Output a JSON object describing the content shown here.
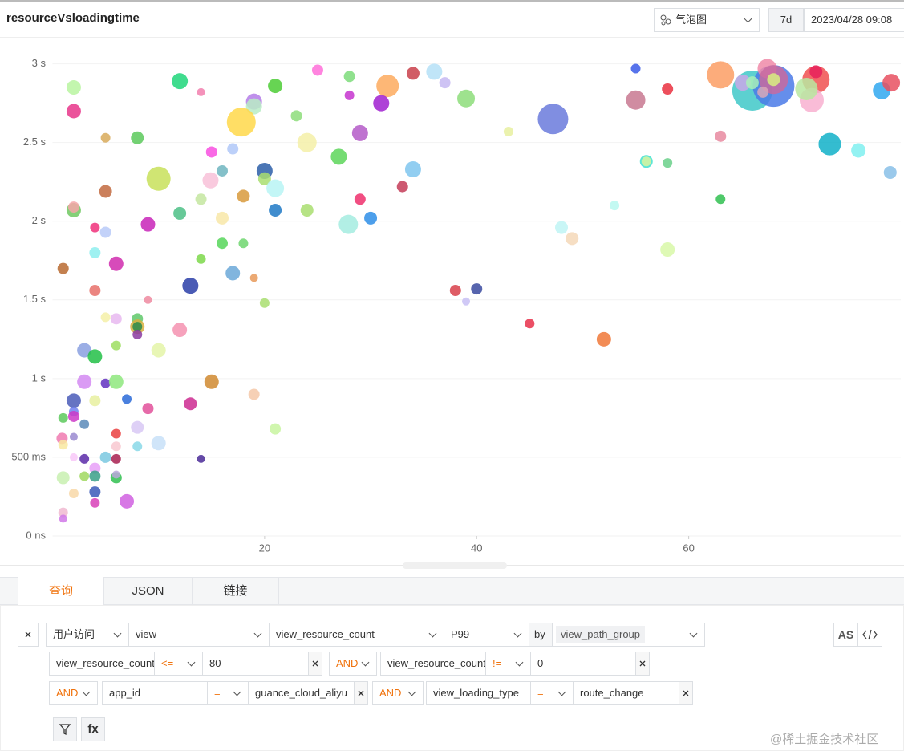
{
  "header": {
    "title": "resourceVsloadingtime",
    "chart_type": "气泡图",
    "range": "7d",
    "time": "2023/04/28 09:08"
  },
  "chart_data": {
    "type": "bubble",
    "x": [
      2.0,
      2.0,
      12.0,
      14.0,
      25.0,
      28.0,
      31.6,
      34.0,
      36.0,
      37.0,
      39.0,
      28.0,
      31.0,
      21.0,
      19.0,
      19.0,
      17.8,
      23.0,
      29.0,
      24.0,
      27.0,
      20.0,
      20.0,
      21.0,
      34.0,
      33.0,
      29.0,
      30.0,
      27.9,
      24.0,
      21.0,
      18.0,
      16.0,
      14.9,
      15.0,
      17.0,
      10.0,
      8.0,
      5.0,
      5.0,
      2.0,
      2.0,
      4.0,
      5.0,
      9.0,
      12.0,
      14.0,
      16.0,
      16.0,
      18.0,
      14.0,
      4.0,
      1.0,
      6.0,
      17.0,
      19.0,
      13.0,
      4.0,
      9.0,
      20.0,
      5.0,
      6.0,
      8.0,
      8.0,
      8.0,
      8.0,
      12.0,
      3.0,
      6.0,
      10.0,
      4.0,
      3.0,
      5.0,
      6.0,
      15.0,
      2.0,
      4.0,
      7.0,
      19.0,
      13.0,
      9.0,
      1.0,
      2.0,
      2.0,
      3.0,
      8.0,
      21.0,
      6.0,
      0.9,
      2.0,
      1.0,
      6.0,
      8.0,
      10.0,
      2.0,
      3.0,
      5.0,
      6.0,
      14.0,
      4.0,
      1.0,
      3.0,
      4.0,
      6.0,
      6.0,
      4.0,
      2.0,
      7.0,
      4.0,
      1.0,
      1.0,
      38.0,
      40.0,
      39.0,
      45.0,
      52.0,
      43.0,
      47.2,
      48.0,
      49.0,
      53.0,
      55.0,
      55.0,
      58.0,
      56.0,
      56.0,
      58.0,
      58.0,
      63.0,
      63.0,
      63.0,
      66.0,
      68.0,
      67.4,
      68.0,
      65.1,
      66.0,
      68.0,
      67.0,
      72.0,
      71.6,
      71.1,
      72.0,
      73.3,
      76.0,
      78.2,
      79.1,
      79.0
    ],
    "values": [
      2850,
      2700,
      2890,
      2820,
      2960,
      2920,
      2860,
      2940,
      2950,
      2880,
      2780,
      2800,
      2750,
      2860,
      2760,
      2730,
      2630,
      2670,
      2560,
      2500,
      2410,
      2320,
      2270,
      2210,
      2330,
      2220,
      2140,
      2020,
      1980,
      2070,
      2070,
      2160,
      2320,
      2260,
      2440,
      2460,
      2270,
      2530,
      2530,
      2190,
      2070,
      2090,
      1960,
      1930,
      1980,
      2050,
      2140,
      2020,
      1860,
      1860,
      1760,
      1800,
      1700,
      1730,
      1670,
      1640,
      1590,
      1560,
      1500,
      1480,
      1390,
      1380,
      1380,
      1330,
      1330,
      1280,
      1310,
      1180,
      1210,
      1180,
      1140,
      980,
      970,
      980,
      980,
      860,
      860,
      870,
      900,
      840,
      810,
      750,
      790,
      760,
      710,
      690,
      680,
      650,
      620,
      630,
      580,
      570,
      570,
      590,
      500,
      490,
      500,
      490,
      490,
      430,
      370,
      380,
      380,
      370,
      390,
      280,
      270,
      220,
      210,
      150,
      110,
      1560,
      1570,
      1490,
      1350,
      1250,
      2570,
      2650,
      1960,
      1890,
      2100,
      2970,
      2770,
      2840,
      2380,
      2380,
      2370,
      1820,
      2540,
      2140,
      2930,
      2830,
      2860,
      2970,
      2900,
      2880,
      2880,
      2900,
      2820,
      2900,
      2770,
      2840,
      2950,
      2490,
      2450,
      2830,
      2880,
      2310
    ],
    "sizes": [
      9,
      9,
      10,
      5,
      7,
      7,
      14,
      8,
      10,
      7,
      11,
      6,
      10,
      9,
      10,
      10,
      18,
      7,
      10,
      12,
      10,
      10,
      8,
      11,
      10,
      7,
      7,
      8,
      12,
      8,
      8,
      8,
      7,
      10,
      7,
      7,
      15,
      8,
      6,
      8,
      9,
      7,
      6,
      7,
      9,
      8,
      7,
      8,
      7,
      6,
      6,
      7,
      7,
      9,
      9,
      5,
      10,
      7,
      5,
      6,
      6,
      7,
      7,
      9,
      6,
      6,
      9,
      9,
      6,
      9,
      9,
      9,
      6,
      9,
      9,
      9,
      7,
      6,
      7,
      8,
      7,
      6,
      6,
      7,
      6,
      8,
      7,
      6,
      7,
      5,
      6,
      6,
      6,
      9,
      5,
      6,
      7,
      6,
      5,
      7,
      8,
      6,
      7,
      7,
      5,
      7,
      6,
      9,
      6,
      6,
      5,
      7,
      7,
      5,
      6,
      9,
      6,
      19,
      8,
      8,
      6,
      6,
      12,
      7,
      8,
      6,
      6,
      9,
      7,
      6,
      17,
      25,
      26,
      12,
      18,
      10,
      8,
      8,
      7,
      17,
      15,
      14,
      8,
      14,
      9,
      11,
      11,
      8
    ],
    "colors": [
      "#b9f5a0",
      "#e8358a",
      "#1fd67a",
      "#f27fae",
      "#ff6fd9",
      "#7ddc7a",
      "#fdaa5e",
      "#c9404a",
      "#b5e1f7",
      "#c5b8f2",
      "#8ddd7a",
      "#c634cf",
      "#a020d0",
      "#4ccd35",
      "#b47ce8",
      "#b8ecc6",
      "#ffd84a",
      "#8ddd7a",
      "#b45ac8",
      "#f5f0a8",
      "#5dd65a",
      "#2b5ea8",
      "#a9de70",
      "#b8f5f5",
      "#7fc6ee",
      "#c43c58",
      "#ef2f6c",
      "#2e8ee8",
      "#a4ece0",
      "#a9de70",
      "#1f79c5",
      "#d89a3c",
      "#6fb5c0",
      "#f8c1d8",
      "#f84fe0",
      "#b0c8f8",
      "#c8e05a",
      "#5cc95c",
      "#d8aa5a",
      "#c26a40",
      "#6ec860",
      "#f4a6a8",
      "#f0307a",
      "#b8caf8",
      "#c825b8",
      "#4cbf86",
      "#c4e6a0",
      "#f8e8a8",
      "#57d65a",
      "#6ed66e",
      "#7cd84a",
      "#8eeeee",
      "#b86a30",
      "#d02cae",
      "#6ba8d8",
      "#e89a5a",
      "#2a3ea8",
      "#e8706a",
      "#ee8aa0",
      "#a9de70",
      "#f4f0a8",
      "#e8b8f0",
      "#5fc86a",
      "#d8b040",
      "#2a8a4a",
      "#8a3aa0",
      "#f492b0",
      "#8aa0e0",
      "#9ede60",
      "#e4f4a8",
      "#22c046",
      "#d48af2",
      "#6030c0",
      "#8ee87e",
      "#d08a30",
      "#4a5cb8",
      "#e8f0a0",
      "#2a6ad8",
      "#f4c8a8",
      "#cc2a90",
      "#e2509a",
      "#5cc95c",
      "#7080f0",
      "#cc3ac8",
      "#5a8ab8",
      "#d8c8f4",
      "#c8f4a0",
      "#ea4040",
      "#f07ab0",
      "#9a8ad0",
      "#f8e8a0",
      "#f8c8d0",
      "#88d8e8",
      "#c8e0f8",
      "#f8c8f8",
      "#5a2aa8",
      "#7ac8e0",
      "#a82050",
      "#4a2a98",
      "#e8a0f8",
      "#c8f0b0",
      "#a0d860",
      "#3aa088",
      "#30c050",
      "#b8a8d8",
      "#3a5ab8",
      "#f8d8a8",
      "#d060e0",
      "#d840b8",
      "#f0b8d0",
      "#d078e8",
      "#d8404a",
      "#3a4aa0",
      "#c8c0f4",
      "#e8304a",
      "#f07838",
      "#e8f0a0",
      "#6a7adc",
      "#c0f4f4",
      "#f4d8b8",
      "#b8f8f0",
      "#3a5ae8",
      "#c87890",
      "#ea3040",
      "#40e0d0",
      "#d8f4a0",
      "#6ad08a",
      "#d8f8a8",
      "#e88aa0",
      "#30c050",
      "#fb9e64",
      "#40c8c8",
      "#4a7ae8",
      "#f08aa8",
      "#c86aa0",
      "#c8a8e8",
      "#a8f0b8",
      "#d8f080",
      "#d8a8b8",
      "#f05050",
      "#f8b0d0",
      "#b8e8a0",
      "#e8205a",
      "#10b0c8",
      "#80f0f0",
      "#30a8f0",
      "#e85060",
      "#88c0e8"
    ],
    "xlim": [
      0,
      80
    ],
    "xticks": [
      20,
      40,
      60
    ],
    "ylim": [
      0,
      3100
    ],
    "yticks": [
      {
        "value": 0,
        "label": "0 ns"
      },
      {
        "value": 500,
        "label": "500 ms"
      },
      {
        "value": 1000,
        "label": "1 s"
      },
      {
        "value": 1500,
        "label": "1.5 s"
      },
      {
        "value": 2000,
        "label": "2 s"
      },
      {
        "value": 2500,
        "label": "2.5 s"
      },
      {
        "value": 3000,
        "label": "3 s"
      }
    ],
    "grid": true
  },
  "tabs": [
    "查询",
    "JSON",
    "链接"
  ],
  "query": {
    "source": "用户访问",
    "category": "view",
    "field": "view_resource_count",
    "agg": "P99",
    "by": "by",
    "group_tag": "view_path_group",
    "as": "AS",
    "filters": [
      {
        "field": "view_resource_count",
        "op": "<=",
        "value": "80"
      },
      {
        "logic": "AND",
        "field": "view_resource_count",
        "op": "!=",
        "value": "0"
      },
      {
        "logic": "AND",
        "field": "app_id",
        "op": "=",
        "value": "guance_cloud_aliyu"
      },
      {
        "logic": "AND",
        "field": "view_loading_type",
        "op": "=",
        "value": "route_change"
      }
    ],
    "fx": "fx"
  },
  "watermark": "@稀土掘金技术社区"
}
